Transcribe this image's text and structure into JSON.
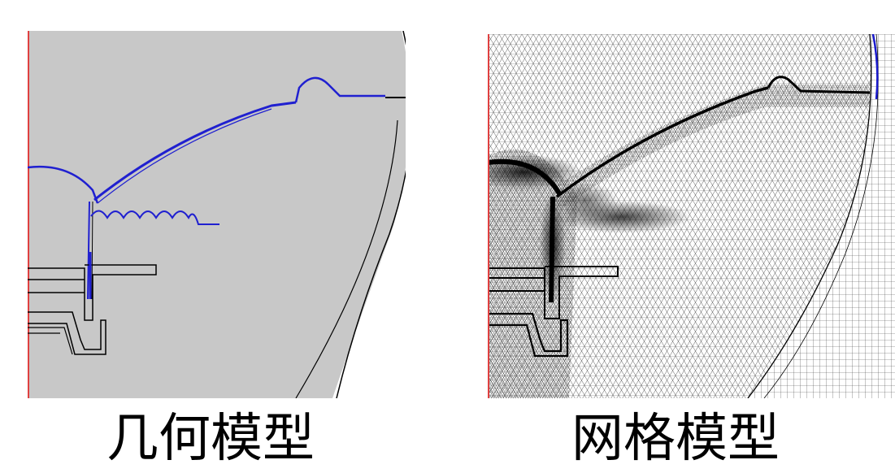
{
  "panels": {
    "geometry": {
      "caption": "几何模型",
      "colors": {
        "background": "#c8c8c8",
        "boundary_line": "#000000",
        "blade_line": "#2020d0",
        "axis_line": "#e04040"
      }
    },
    "mesh": {
      "caption": "网格模型",
      "colors": {
        "background": "#ffffff",
        "mesh_line": "#222222",
        "outer_ring_line": "#000000",
        "boundary_line": "#1a1acc",
        "axis_line": "#e04040"
      }
    }
  }
}
